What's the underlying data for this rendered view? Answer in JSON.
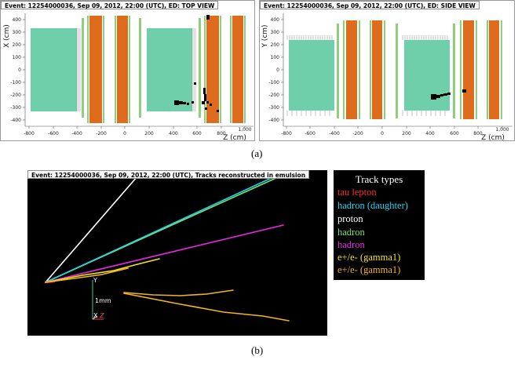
{
  "top_view": {
    "title": "Event: 12254000036, Sep 09, 2012, 22:00 (UTC), ED: TOP VIEW",
    "y_axis_label": "X (cm)",
    "x_axis_label": "Z (cm)",
    "x_ticks": [
      "-800",
      "-600",
      "-400",
      "-200",
      "0",
      "200",
      "400",
      "600",
      "800",
      "1,000"
    ],
    "y_ticks": [
      "400",
      "300",
      "200",
      "100",
      "0",
      "-100",
      "-200",
      "-300",
      "-400"
    ]
  },
  "side_view": {
    "title": "Event: 12254000036, Sep 09, 2012, 22:00 (UTC), ED: SIDE VIEW",
    "y_axis_label": "Y (cm)",
    "x_axis_label": "Z (cm)",
    "x_ticks": [
      "-800",
      "-600",
      "-400",
      "-200",
      "0",
      "200",
      "400",
      "600",
      "800",
      "1,000"
    ],
    "y_ticks": [
      "400",
      "300",
      "200",
      "100",
      "0",
      "-100",
      "-200",
      "-300",
      "-400"
    ]
  },
  "caption_a": "(a)",
  "emulsion_view": {
    "title": "Event: 12254000036, Sep 09, 2012, 22:00 (UTC), Tracks reconstructed in emulsion",
    "scale_label": "1mm",
    "axis_y": "Y",
    "axis_x": "X",
    "axis_z": "Z"
  },
  "legend": {
    "title": "Track types",
    "items": [
      {
        "label": "tau lepton",
        "color": "#ff2a2a"
      },
      {
        "label": "hadron (daughter)",
        "color": "#22d3f0"
      },
      {
        "label": "proton",
        "color": "#ffffff"
      },
      {
        "label": "hadron",
        "color": "#7be36a"
      },
      {
        "label": "hadron",
        "color": "#e62ae6"
      },
      {
        "label": "e+/e- (gamma1)",
        "color": "#f2e619"
      },
      {
        "label": "e+/e- (gamma1)",
        "color": "#f2b619"
      }
    ]
  },
  "caption_b": "(b)",
  "colors": {
    "target_green": "#6fcfaa",
    "spectrometer_orange": "#de6c1c",
    "tracker_green": "#8fcf7c"
  }
}
